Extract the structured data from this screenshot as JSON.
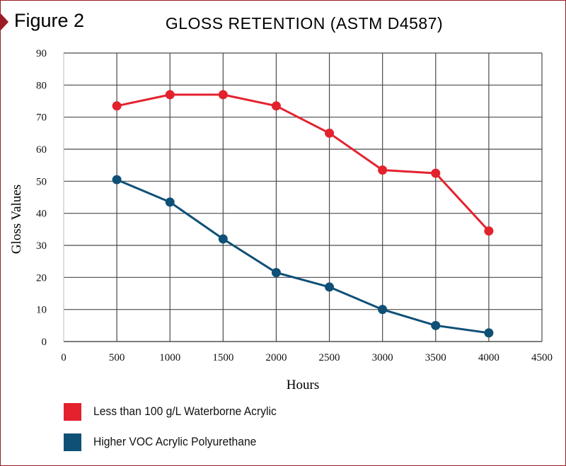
{
  "figure_label": "Figure 2",
  "chart_data": {
    "type": "line",
    "title": "GLOSS RETENTION (ASTM D4587)",
    "xlabel": "Hours",
    "ylabel": "Gloss Values",
    "xlim": [
      0,
      4500
    ],
    "ylim": [
      0,
      90
    ],
    "xticks": [
      0,
      500,
      1000,
      1500,
      2000,
      2500,
      3000,
      3500,
      4000,
      4500
    ],
    "yticks": [
      0,
      10,
      20,
      30,
      40,
      50,
      60,
      70,
      80,
      90
    ],
    "grid": true,
    "legend_position": "bottom",
    "x": [
      500,
      1000,
      1500,
      2000,
      2500,
      3000,
      3500,
      4000
    ],
    "series": [
      {
        "name": "Less than 100 g/L Waterborne Acrylic",
        "color": "#e3222e",
        "values": [
          73.5,
          77,
          77,
          73.5,
          65,
          53.5,
          52.5,
          34.5
        ]
      },
      {
        "name": "Higher VOC Acrylic Polyurethane",
        "color": "#0f5077",
        "values": [
          50.5,
          43.5,
          32,
          21.5,
          17,
          10,
          5,
          2.7
        ]
      }
    ]
  }
}
